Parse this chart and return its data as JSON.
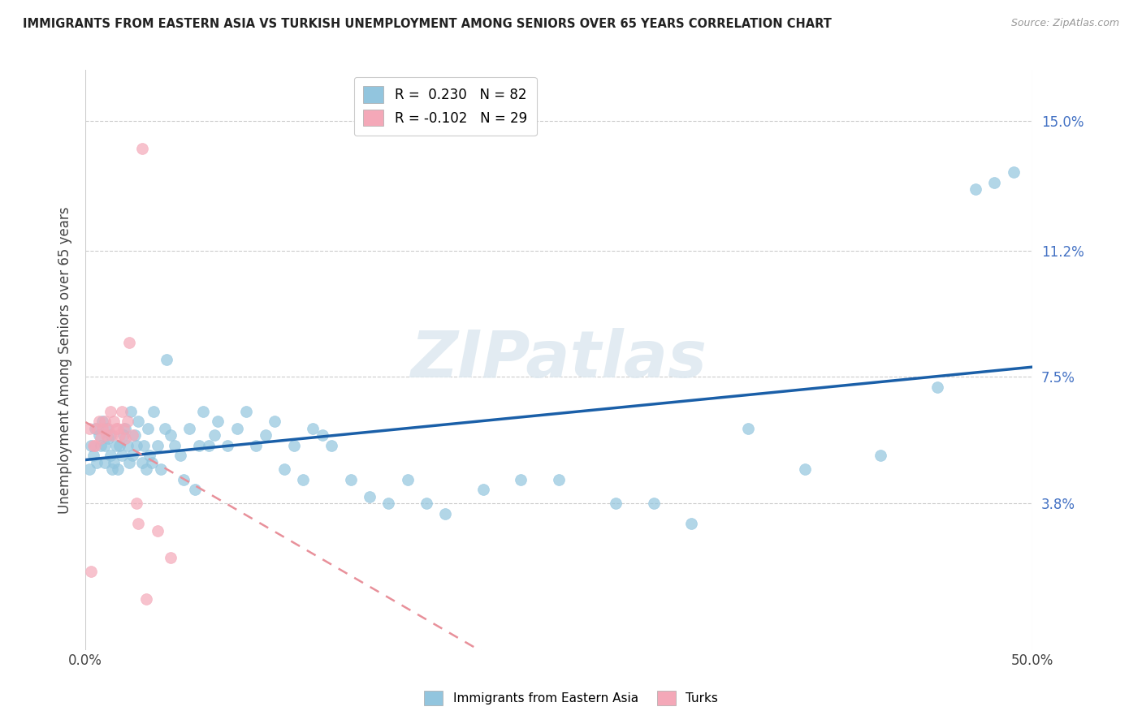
{
  "title": "IMMIGRANTS FROM EASTERN ASIA VS TURKISH UNEMPLOYMENT AMONG SENIORS OVER 65 YEARS CORRELATION CHART",
  "source": "Source: ZipAtlas.com",
  "ylabel": "Unemployment Among Seniors over 65 years",
  "xlim": [
    0.0,
    0.5
  ],
  "ylim": [
    -0.005,
    0.165
  ],
  "yticks": [
    0.038,
    0.075,
    0.112,
    0.15
  ],
  "ytick_labels": [
    "3.8%",
    "7.5%",
    "11.2%",
    "15.0%"
  ],
  "xticks": [
    0.0,
    0.5
  ],
  "xtick_labels": [
    "0.0%",
    "50.0%"
  ],
  "blue_R": 0.23,
  "blue_N": 82,
  "pink_R": -0.102,
  "pink_N": 29,
  "blue_color": "#92c5de",
  "pink_color": "#f4a8b8",
  "watermark": "ZIPatlas",
  "blue_line_color": "#1a5fa8",
  "pink_line_color": "#e8909a",
  "blue_scatter_x": [
    0.002,
    0.003,
    0.004,
    0.005,
    0.006,
    0.007,
    0.008,
    0.009,
    0.01,
    0.01,
    0.011,
    0.012,
    0.013,
    0.013,
    0.014,
    0.015,
    0.016,
    0.017,
    0.018,
    0.019,
    0.02,
    0.021,
    0.022,
    0.023,
    0.024,
    0.025,
    0.026,
    0.027,
    0.028,
    0.03,
    0.031,
    0.032,
    0.033,
    0.034,
    0.035,
    0.036,
    0.038,
    0.04,
    0.042,
    0.043,
    0.045,
    0.047,
    0.05,
    0.052,
    0.055,
    0.058,
    0.06,
    0.062,
    0.065,
    0.068,
    0.07,
    0.075,
    0.08,
    0.085,
    0.09,
    0.095,
    0.1,
    0.105,
    0.11,
    0.115,
    0.12,
    0.125,
    0.13,
    0.14,
    0.15,
    0.16,
    0.17,
    0.18,
    0.19,
    0.21,
    0.23,
    0.25,
    0.28,
    0.3,
    0.32,
    0.35,
    0.38,
    0.42,
    0.45,
    0.47,
    0.48,
    0.49
  ],
  "blue_scatter_y": [
    0.048,
    0.055,
    0.052,
    0.06,
    0.05,
    0.058,
    0.055,
    0.062,
    0.055,
    0.05,
    0.06,
    0.057,
    0.052,
    0.058,
    0.048,
    0.05,
    0.055,
    0.048,
    0.055,
    0.052,
    0.058,
    0.06,
    0.055,
    0.05,
    0.065,
    0.052,
    0.058,
    0.055,
    0.062,
    0.05,
    0.055,
    0.048,
    0.06,
    0.052,
    0.05,
    0.065,
    0.055,
    0.048,
    0.06,
    0.08,
    0.058,
    0.055,
    0.052,
    0.045,
    0.06,
    0.042,
    0.055,
    0.065,
    0.055,
    0.058,
    0.062,
    0.055,
    0.06,
    0.065,
    0.055,
    0.058,
    0.062,
    0.048,
    0.055,
    0.045,
    0.06,
    0.058,
    0.055,
    0.045,
    0.04,
    0.038,
    0.045,
    0.038,
    0.035,
    0.042,
    0.045,
    0.045,
    0.038,
    0.038,
    0.032,
    0.06,
    0.048,
    0.052,
    0.072,
    0.13,
    0.132,
    0.135
  ],
  "pink_scatter_x": [
    0.002,
    0.003,
    0.004,
    0.005,
    0.006,
    0.007,
    0.008,
    0.009,
    0.01,
    0.011,
    0.012,
    0.013,
    0.014,
    0.015,
    0.016,
    0.017,
    0.018,
    0.019,
    0.02,
    0.021,
    0.022,
    0.023,
    0.025,
    0.027,
    0.028,
    0.03,
    0.032,
    0.038,
    0.045
  ],
  "pink_scatter_y": [
    0.06,
    0.018,
    0.055,
    0.055,
    0.06,
    0.062,
    0.057,
    0.06,
    0.062,
    0.058,
    0.06,
    0.065,
    0.058,
    0.062,
    0.06,
    0.06,
    0.058,
    0.065,
    0.06,
    0.057,
    0.062,
    0.085,
    0.058,
    0.038,
    0.032,
    0.142,
    0.01,
    0.03,
    0.022
  ]
}
